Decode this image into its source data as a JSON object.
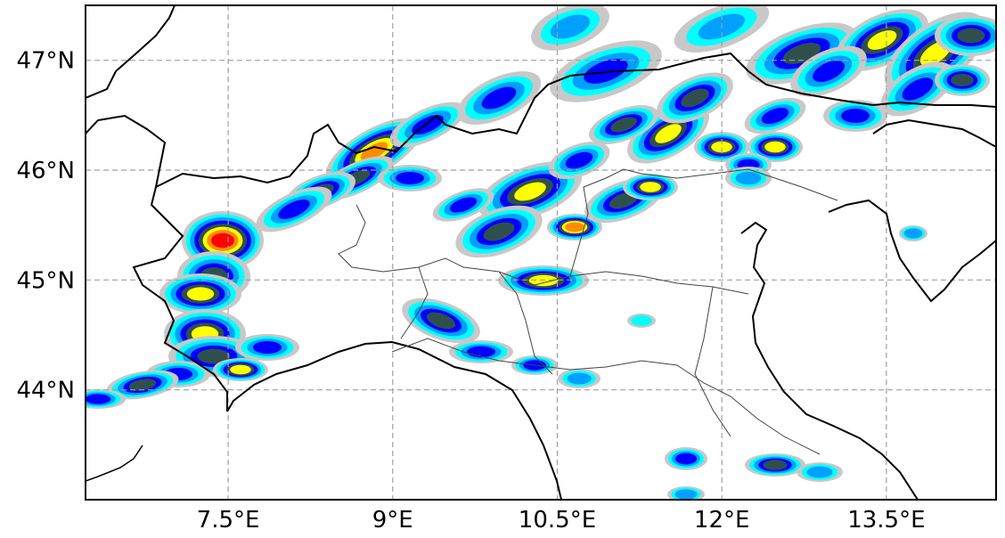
{
  "map": {
    "lon_range": [
      6.2,
      14.5
    ],
    "lat_range": [
      43.0,
      47.5
    ],
    "gridlines": true,
    "colors": {
      "frame": "#000000",
      "grid": "#a0a0a0",
      "coast": "#000000",
      "borders": "#444444",
      "precip_light": "#c8c8c8",
      "precip_cyan": "#00ffff",
      "precip_mid": "#00a0ff",
      "precip_blue": "#0000ff",
      "precip_dark": "#2f4f4f",
      "precip_yellow": "#ffff00",
      "precip_orange": "#ff8c00",
      "precip_red": "#ff0000"
    },
    "x_ticks": [
      {
        "value": 7.5,
        "label": "7.5°E"
      },
      {
        "value": 9.0,
        "label": "9°E"
      },
      {
        "value": 10.5,
        "label": "10.5°E"
      },
      {
        "value": 12.0,
        "label": "12°E"
      },
      {
        "value": 13.5,
        "label": "13.5°E"
      }
    ],
    "y_ticks": [
      {
        "value": 47.0,
        "label": "47°N"
      },
      {
        "value": 46.0,
        "label": "46°N"
      },
      {
        "value": 45.0,
        "label": "45°N"
      },
      {
        "value": 44.0,
        "label": "44°N"
      }
    ]
  }
}
